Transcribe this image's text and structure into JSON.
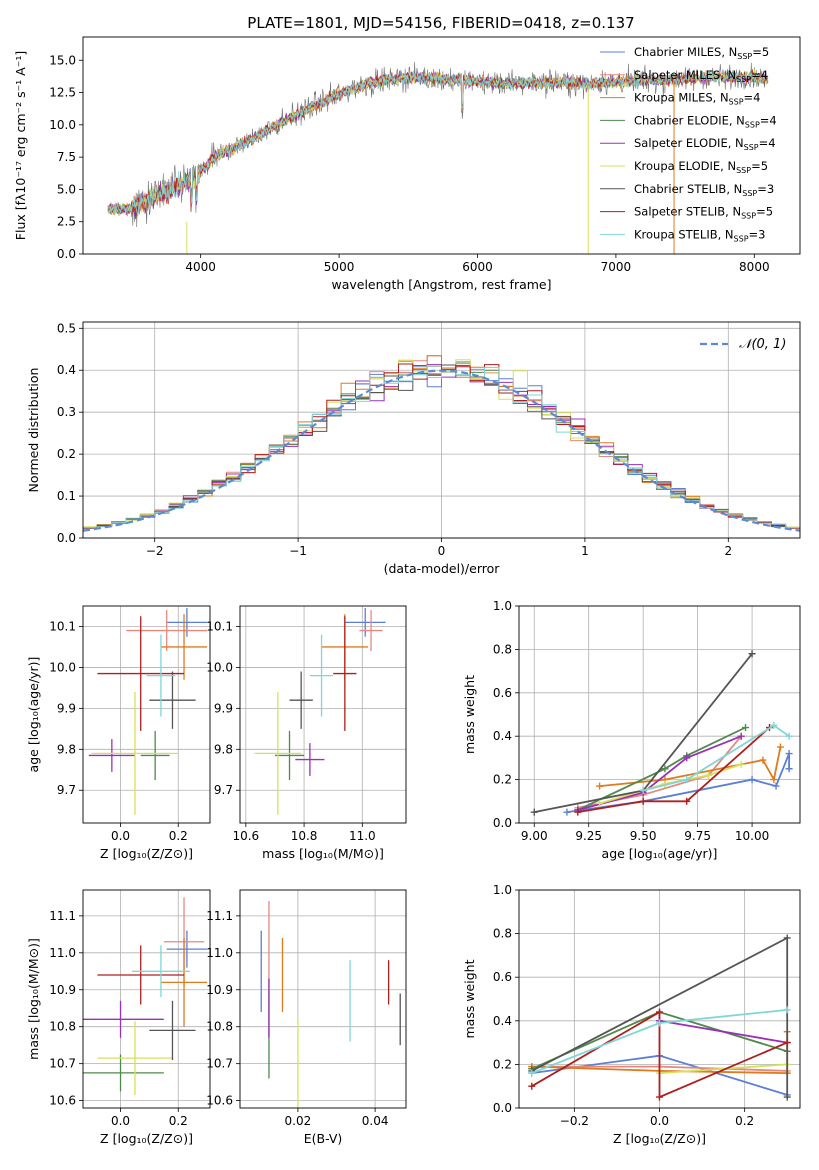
{
  "figure_title": "PLATE=1801, MJD=54156, FIBERID=0418, z=0.137",
  "colors": {
    "series": [
      "#5b7fd6",
      "#e5897f",
      "#e07a1e",
      "#4f8a4a",
      "#9b30b8",
      "#d7e05a",
      "#555555",
      "#b01e1e",
      "#7fd6d6"
    ],
    "gaussian": "#5b8ad6",
    "grid": "#b0b0b0"
  },
  "legend_spectrum": [
    {
      "base": "Chabrier MILES, N",
      "sub": "SSP",
      "eq": "=5"
    },
    {
      "base": "Salpeter MILES, N",
      "sub": "SSP",
      "eq": "=4"
    },
    {
      "base": "Kroupa MILES, N",
      "sub": "SSP",
      "eq": "=4"
    },
    {
      "base": "Chabrier ELODIE, N",
      "sub": "SSP",
      "eq": "=4"
    },
    {
      "base": "Salpeter ELODIE, N",
      "sub": "SSP",
      "eq": "=4"
    },
    {
      "base": "Kroupa ELODIE, N",
      "sub": "SSP",
      "eq": "=5"
    },
    {
      "base": "Chabrier STELIB, N",
      "sub": "SSP",
      "eq": "=3"
    },
    {
      "base": "Salpeter STELIB, N",
      "sub": "SSP",
      "eq": "=5"
    },
    {
      "base": "Kroupa STELIB, N",
      "sub": "SSP",
      "eq": "=3"
    }
  ],
  "chart_data": [
    {
      "id": "spectrum",
      "type": "line",
      "xlabel": "wavelength [Angstrom, rest frame]",
      "ylabel": "Flux [fλ10⁻¹⁷ erg cm⁻² s⁻¹ A⁻¹]",
      "xlim": [
        3150,
        8330
      ],
      "ylim": [
        0,
        16.8
      ],
      "xticks": [
        4000,
        5000,
        6000,
        7000,
        8000
      ],
      "yticks": [
        0.0,
        2.5,
        5.0,
        7.5,
        10.0,
        12.5,
        15.0
      ],
      "continuum": [
        [
          3330,
          3.5
        ],
        [
          3500,
          3.5
        ],
        [
          3700,
          4.6
        ],
        [
          3950,
          5.8
        ],
        [
          4100,
          7.5
        ],
        [
          4350,
          8.8
        ],
        [
          4600,
          10.3
        ],
        [
          4850,
          11.6
        ],
        [
          5000,
          12.4
        ],
        [
          5200,
          13.2
        ],
        [
          5500,
          13.7
        ],
        [
          5800,
          13.5
        ],
        [
          6200,
          13.2
        ],
        [
          6500,
          13.3
        ],
        [
          6800,
          13.2
        ],
        [
          7100,
          13.4
        ],
        [
          7400,
          13.5
        ],
        [
          7700,
          13.7
        ],
        [
          8000,
          13.7
        ],
        [
          8100,
          13.5
        ]
      ],
      "noise_low_range": [
        3500,
        4000
      ],
      "grid": false
    },
    {
      "id": "residuals",
      "type": "histogram",
      "xlabel": "(data-model)/error",
      "ylabel": "Normed distribution",
      "xlim": [
        -2.5,
        2.5
      ],
      "ylim": [
        0,
        0.515
      ],
      "xticks": [
        -2,
        -1,
        0,
        1,
        2
      ],
      "yticks": [
        0.0,
        0.1,
        0.2,
        0.3,
        0.4,
        0.5
      ],
      "bin_width": 0.1,
      "legend": "𝒩(0, 1)",
      "grid": true
    },
    {
      "id": "age_vs_Z",
      "type": "scatter",
      "xlabel": "Z [log₁₀(Z/Z⊙)]",
      "ylabel": "age  [log₁₀(age/yr)]",
      "xlim": [
        -0.13,
        0.31
      ],
      "ylim": [
        9.62,
        10.15
      ],
      "xticks": [
        0.0,
        0.2
      ],
      "yticks": [
        9.7,
        9.8,
        9.9,
        10.0,
        10.1
      ],
      "points": [
        {
          "x": 0.23,
          "xe": 0.07,
          "y": 10.11,
          "ye": 0.035
        },
        {
          "x": 0.16,
          "xe": 0.14,
          "y": 10.09,
          "ye": 0.05
        },
        {
          "x": 0.22,
          "xe": 0.08,
          "y": 10.05,
          "ye": 0.08
        },
        {
          "x": 0.12,
          "xe": 0.05,
          "y": 9.785,
          "ye": 0.06
        },
        {
          "x": -0.03,
          "xe": 0.08,
          "y": 9.785,
          "ye": 0.04
        },
        {
          "x": 0.05,
          "xe": 0.15,
          "y": 9.79,
          "ye": 0.15
        },
        {
          "x": 0.18,
          "xe": 0.08,
          "y": 9.92,
          "ye": 0.07
        },
        {
          "x": 0.07,
          "xe": 0.15,
          "y": 9.985,
          "ye": 0.14
        },
        {
          "x": 0.14,
          "xe": 0.05,
          "y": 9.98,
          "ye": 0.1
        }
      ],
      "grid": true
    },
    {
      "id": "age_vs_mass",
      "type": "scatter",
      "xlabel": "mass [log₁₀(M/M⊙)]",
      "xlim": [
        10.58,
        11.15
      ],
      "ylim": [
        9.62,
        10.15
      ],
      "xticks": [
        10.6,
        10.8,
        11.0
      ],
      "yticks": [
        9.7,
        9.8,
        9.9,
        10.0,
        10.1
      ],
      "points": [
        {
          "x": 11.01,
          "xe": 0.07,
          "y": 10.11,
          "ye": 0.035
        },
        {
          "x": 11.03,
          "xe": 0.04,
          "y": 10.09,
          "ye": 0.05
        },
        {
          "x": 10.94,
          "xe": 0.08,
          "y": 10.05,
          "ye": 0.08
        },
        {
          "x": 10.75,
          "xe": 0.05,
          "y": 9.785,
          "ye": 0.06
        },
        {
          "x": 10.82,
          "xe": 0.05,
          "y": 9.775,
          "ye": 0.04
        },
        {
          "x": 10.71,
          "xe": 0.08,
          "y": 9.79,
          "ye": 0.15
        },
        {
          "x": 10.79,
          "xe": 0.04,
          "y": 9.92,
          "ye": 0.07
        },
        {
          "x": 10.94,
          "xe": 0.04,
          "y": 9.985,
          "ye": 0.14
        },
        {
          "x": 10.86,
          "xe": 0.04,
          "y": 9.98,
          "ye": 0.1
        }
      ],
      "grid": true
    },
    {
      "id": "massweight_vs_age",
      "type": "line",
      "xlabel": "age  [log₁₀(age/yr)]",
      "ylabel": "mass weight",
      "xlim": [
        8.93,
        10.22
      ],
      "ylim": [
        0,
        1.0
      ],
      "xticks": [
        9.0,
        9.25,
        9.5,
        9.75,
        10.0
      ],
      "yticks": [
        0.0,
        0.2,
        0.4,
        0.6,
        0.8,
        1.0
      ],
      "series": [
        [
          [
            9.15,
            0.05
          ],
          [
            9.5,
            0.1
          ],
          [
            10.0,
            0.2
          ],
          [
            10.11,
            0.17
          ],
          [
            10.17,
            0.32
          ],
          [
            10.17,
            0.25
          ]
        ],
        [
          [
            9.2,
            0.07
          ],
          [
            9.5,
            0.13
          ],
          [
            9.8,
            0.22
          ],
          [
            9.95,
            0.4
          ]
        ],
        [
          [
            9.3,
            0.17
          ],
          [
            9.6,
            0.2
          ],
          [
            10.05,
            0.29
          ],
          [
            10.1,
            0.2
          ],
          [
            10.13,
            0.35
          ]
        ],
        [
          [
            9.2,
            0.06
          ],
          [
            9.6,
            0.25
          ],
          [
            9.7,
            0.31
          ],
          [
            9.97,
            0.44
          ]
        ],
        [
          [
            9.2,
            0.06
          ],
          [
            9.5,
            0.14
          ],
          [
            9.7,
            0.3
          ],
          [
            9.95,
            0.4
          ]
        ],
        [
          [
            9.3,
            0.09
          ],
          [
            9.6,
            0.18
          ],
          [
            9.8,
            0.22
          ],
          [
            9.95,
            0.27
          ]
        ],
        [
          [
            9.0,
            0.05
          ],
          [
            9.5,
            0.15
          ],
          [
            10.0,
            0.78
          ]
        ],
        [
          [
            9.2,
            0.05
          ],
          [
            9.5,
            0.1
          ],
          [
            9.7,
            0.1
          ],
          [
            10.08,
            0.44
          ]
        ],
        [
          [
            9.5,
            0.15
          ],
          [
            9.7,
            0.2
          ],
          [
            10.1,
            0.45
          ],
          [
            10.17,
            0.4
          ]
        ]
      ],
      "grid": true
    },
    {
      "id": "mass_vs_Z",
      "type": "scatter",
      "xlabel": "Z [log₁₀(Z/Z⊙)]",
      "ylabel": "mass [log₁₀(M/M⊙)]",
      "xlim": [
        -0.13,
        0.31
      ],
      "ylim": [
        10.58,
        11.17
      ],
      "xticks": [
        0.0,
        0.2
      ],
      "yticks": [
        10.6,
        10.7,
        10.8,
        10.9,
        11.0,
        11.1
      ],
      "points": [
        {
          "x": 0.23,
          "xe": 0.07,
          "y": 11.01,
          "ye": 0.05
        },
        {
          "x": 0.22,
          "xe": 0.07,
          "y": 11.03,
          "ye": 0.12
        },
        {
          "x": 0.22,
          "xe": 0.08,
          "y": 10.92,
          "ye": 0.12
        },
        {
          "x": 0.0,
          "xe": 0.15,
          "y": 10.675,
          "ye": 0.05
        },
        {
          "x": 0.0,
          "xe": 0.15,
          "y": 10.82,
          "ye": 0.05
        },
        {
          "x": 0.05,
          "xe": 0.13,
          "y": 10.715,
          "ye": 0.1
        },
        {
          "x": 0.18,
          "xe": 0.08,
          "y": 10.79,
          "ye": 0.08
        },
        {
          "x": 0.07,
          "xe": 0.15,
          "y": 10.94,
          "ye": 0.08
        },
        {
          "x": 0.14,
          "xe": 0.1,
          "y": 10.95,
          "ye": 0.07
        }
      ],
      "grid": true
    },
    {
      "id": "mass_vs_EBV",
      "type": "scatter",
      "xlabel": "E(B-V)",
      "xlim": [
        0.005,
        0.048
      ],
      "ylim": [
        10.58,
        11.17
      ],
      "xticks": [
        0.02,
        0.04
      ],
      "yticks": [
        10.6,
        10.7,
        10.8,
        10.9,
        11.0,
        11.1
      ],
      "points": [
        {
          "x": 0.0105,
          "y": 10.95,
          "ye": 0.11
        },
        {
          "x": 0.0125,
          "y": 11.02,
          "ye": 0.12
        },
        {
          "x": 0.016,
          "y": 10.94,
          "ye": 0.1
        },
        {
          "x": 0.0125,
          "y": 10.78,
          "ye": 0.12
        },
        {
          "x": 0.0125,
          "y": 10.85,
          "ye": 0.08
        },
        {
          "x": 0.02,
          "y": 10.7,
          "ye": 0.12
        },
        {
          "x": 0.0465,
          "y": 10.82,
          "ye": 0.07
        },
        {
          "x": 0.0435,
          "y": 10.92,
          "ye": 0.06
        },
        {
          "x": 0.0335,
          "y": 10.87,
          "ye": 0.11
        }
      ],
      "grid": true
    },
    {
      "id": "massweight_vs_Z",
      "type": "line",
      "xlabel": "Z [log₁₀(Z/Z⊙)]",
      "ylabel": "mass weight",
      "xlim": [
        -0.33,
        0.33
      ],
      "ylim": [
        0,
        1.0
      ],
      "xticks": [
        -0.2,
        0.0,
        0.2
      ],
      "yticks": [
        0.0,
        0.2,
        0.4,
        0.6,
        0.8,
        1.0
      ],
      "series": [
        [
          [
            -0.3,
            0.16
          ],
          [
            0.0,
            0.24
          ],
          [
            0.3,
            0.06
          ]
        ],
        [
          [
            -0.3,
            0.19
          ],
          [
            0.0,
            0.19
          ],
          [
            0.3,
            0.17
          ]
        ],
        [
          [
            -0.3,
            0.19
          ],
          [
            0.0,
            0.17
          ],
          [
            0.3,
            0.16
          ],
          [
            0.3,
            0.35
          ]
        ],
        [
          [
            -0.3,
            0.18
          ],
          [
            0.0,
            0.44
          ],
          [
            0.3,
            0.26
          ]
        ],
        [
          [
            0.0,
            0.4
          ],
          [
            0.3,
            0.3
          ]
        ],
        [
          [
            0.0,
            0.16
          ],
          [
            0.3,
            0.2
          ]
        ],
        [
          [
            -0.3,
            0.17
          ],
          [
            0.3,
            0.78
          ],
          [
            0.3,
            0.05
          ]
        ],
        [
          [
            -0.3,
            0.1
          ],
          [
            0.0,
            0.44
          ],
          [
            0.0,
            0.05
          ],
          [
            0.3,
            0.3
          ]
        ],
        [
          [
            -0.3,
            0.16
          ],
          [
            0.0,
            0.39
          ],
          [
            0.3,
            0.45
          ]
        ]
      ],
      "grid": true
    }
  ]
}
